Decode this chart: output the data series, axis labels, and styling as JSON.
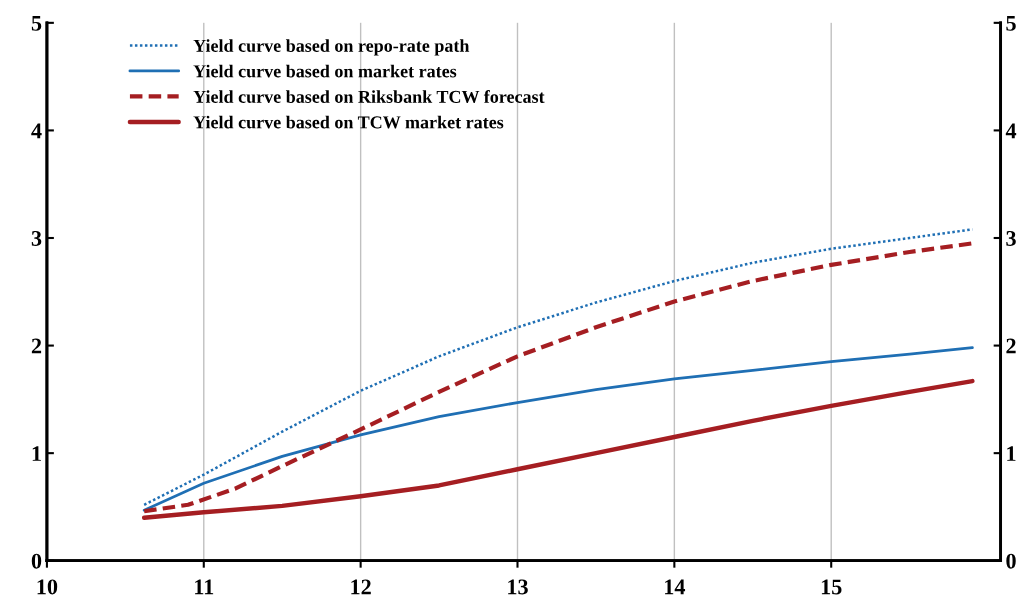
{
  "chart_data": {
    "type": "line",
    "xlim": [
      10,
      16.08
    ],
    "xticks": [
      10,
      11,
      12,
      13,
      14,
      15
    ],
    "ylim": [
      0,
      5
    ],
    "yticks": [
      0,
      1,
      2,
      3,
      4,
      5
    ],
    "y2lim": [
      0,
      5
    ],
    "y2ticks": [
      0,
      1,
      2,
      3,
      4,
      5
    ],
    "grid": "x",
    "legend": "top left",
    "series": [
      {
        "name": "Yield curve based on repo-rate path",
        "color": "#1f6fb4",
        "line_style": "dotted",
        "x": [
          10.62,
          11,
          11.5,
          12,
          12.5,
          13,
          13.5,
          14,
          14.5,
          15,
          15.5,
          15.9
        ],
        "values": [
          0.52,
          0.8,
          1.2,
          1.58,
          1.9,
          2.17,
          2.4,
          2.6,
          2.77,
          2.9,
          3.0,
          3.08
        ]
      },
      {
        "name": "Yield curve based on market rates",
        "color": "#1f6fb4",
        "line_style": "solid",
        "x": [
          10.62,
          11,
          11.5,
          12,
          12.5,
          13,
          13.5,
          14,
          14.5,
          15,
          15.5,
          15.9
        ],
        "values": [
          0.47,
          0.72,
          0.97,
          1.17,
          1.34,
          1.47,
          1.59,
          1.69,
          1.77,
          1.85,
          1.92,
          1.98
        ]
      },
      {
        "name": "Yield curve based on Riksbank TCW forecast",
        "color": "#a51e22",
        "line_style": "dashed",
        "x": [
          10.62,
          10.9,
          11.2,
          11.5,
          12,
          12.5,
          13,
          13.5,
          14,
          14.5,
          15,
          15.5,
          15.9
        ],
        "values": [
          0.46,
          0.52,
          0.67,
          0.88,
          1.22,
          1.57,
          1.9,
          2.17,
          2.41,
          2.6,
          2.75,
          2.87,
          2.95
        ]
      },
      {
        "name": "Yield curve based on TCW market rates",
        "color": "#a51e22",
        "line_style": "solid",
        "x": [
          10.62,
          11,
          11.5,
          12,
          12.5,
          13,
          13.5,
          14,
          14.5,
          15,
          15.5,
          15.9
        ],
        "values": [
          0.4,
          0.45,
          0.51,
          0.6,
          0.7,
          0.85,
          1.0,
          1.15,
          1.3,
          1.44,
          1.57,
          1.67
        ]
      }
    ]
  }
}
